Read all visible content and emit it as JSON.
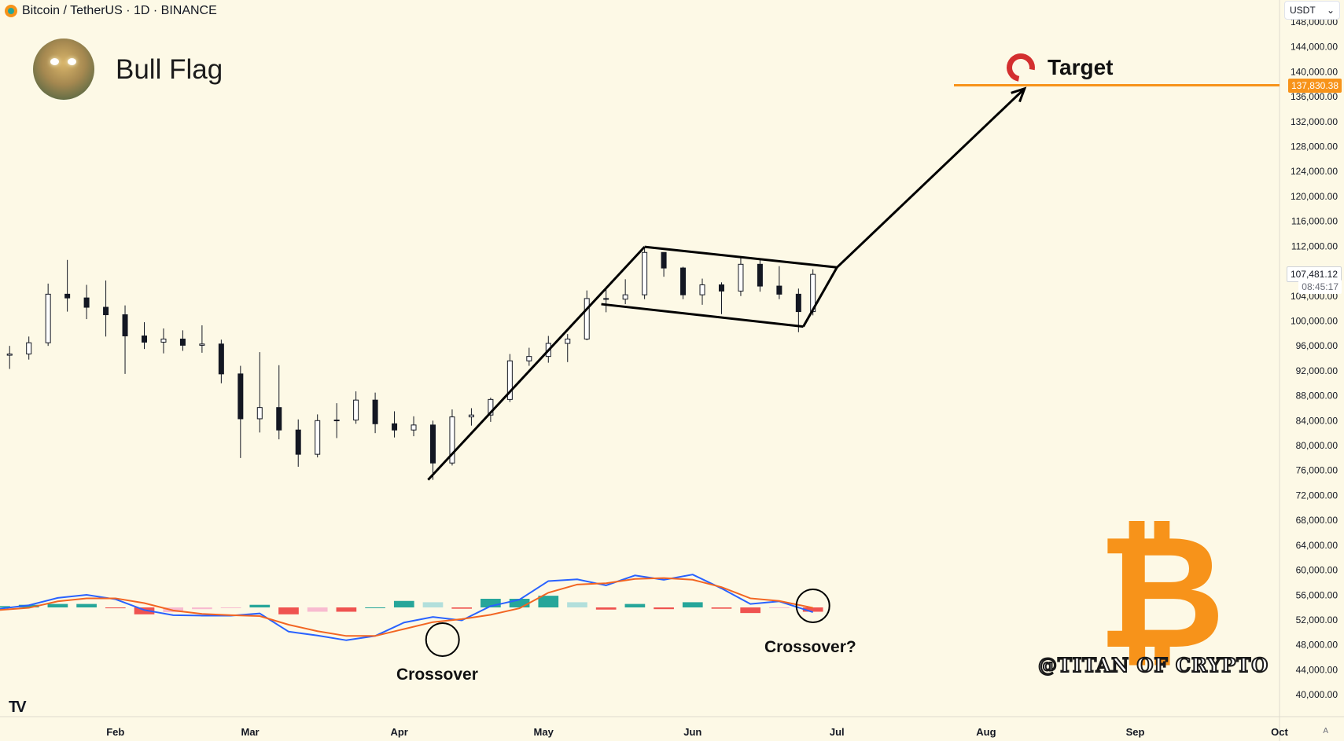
{
  "header": {
    "symbol": "Bitcoin / TetherUS · 1D · BINANCE",
    "currency": "USDT"
  },
  "title": "Bull Flag",
  "target": {
    "label": "Target",
    "price": "137,830.38"
  },
  "price_scale": {
    "current_price": "107,481.12",
    "countdown": "08:45:17"
  },
  "annotations": {
    "crossover": "Crossover",
    "crossover_q": "Crossover?"
  },
  "watermark": {
    "brand": "@TITAN OF CRYPTO",
    "logo": "₿"
  },
  "icons": [
    "bitcoin-coin-icon",
    "chevron-down-icon",
    "magnet-icon",
    "tradingview-logo-icon",
    "auto-scale-icon"
  ],
  "colors": {
    "background": "#fdf9e6",
    "target_line": "#f7931a",
    "macd_line": "#2962ff",
    "signal_line": "#f26522",
    "hist_pos_strong": "#26a69a",
    "hist_pos_weak": "#b2dfdb",
    "hist_neg_strong": "#ef5350",
    "hist_neg_weak": "#f8bbd0"
  },
  "chart_data": [
    {
      "type": "candlestick",
      "xlabel": "",
      "ylabel": "",
      "x_ticks": [
        "Feb",
        "Mar",
        "Apr",
        "May",
        "Jun",
        "Jul",
        "Aug",
        "Sep",
        "Oct"
      ],
      "y_ticks": [
        "40,000.00",
        "44,000.00",
        "48,000.00",
        "52,000.00",
        "56,000.00",
        "60,000.00",
        "64,000.00",
        "68,000.00",
        "72,000.00",
        "76,000.00",
        "80,000.00",
        "84,000.00",
        "88,000.00",
        "92,000.00",
        "96,000.00",
        "100,000.00",
        "104,000.00",
        "108,000.00",
        "112,000.00",
        "116,000.00",
        "120,000.00",
        "124,000.00",
        "128,000.00",
        "132,000.00",
        "136,000.00",
        "140,000.00",
        "144,000.00",
        "148,000.00"
      ],
      "ylim": [
        38000,
        149000
      ],
      "x_range": [
        "2025-01-08",
        "2025-10-01"
      ],
      "target_level": 137830.38,
      "last_close": 107481.12,
      "series": [
        {
          "points": [
            [
              "2025-01-10",
              94500,
              96000,
              92300,
              94700
            ],
            [
              "2025-01-14",
              94700,
              97500,
              93800,
              96500
            ],
            [
              "2025-01-18",
              96500,
              106000,
              96000,
              104300
            ],
            [
              "2025-01-22",
              104300,
              109800,
              101500,
              103700
            ],
            [
              "2025-01-26",
              103700,
              105800,
              100300,
              102200
            ],
            [
              "2025-01-30",
              102200,
              106500,
              97500,
              101000
            ],
            [
              "2025-02-03",
              101000,
              102500,
              91500,
              97600
            ],
            [
              "2025-02-07",
              97600,
              99800,
              95500,
              96600
            ],
            [
              "2025-02-11",
              96600,
              98800,
              94800,
              97100
            ],
            [
              "2025-02-15",
              97100,
              98500,
              95200,
              96100
            ],
            [
              "2025-02-19",
              96100,
              99300,
              94900,
              96300
            ],
            [
              "2025-02-23",
              96300,
              97000,
              90000,
              91500
            ],
            [
              "2025-02-27",
              91500,
              92800,
              78000,
              84300
            ],
            [
              "2025-03-03",
              84300,
              95000,
              82100,
              86100
            ],
            [
              "2025-03-07",
              86100,
              92900,
              81000,
              82500
            ],
            [
              "2025-03-11",
              82500,
              84200,
              76600,
              78600
            ],
            [
              "2025-03-15",
              78600,
              85000,
              78100,
              84000
            ],
            [
              "2025-03-19",
              84000,
              86800,
              81200,
              84100
            ],
            [
              "2025-03-23",
              84100,
              88700,
              83500,
              87300
            ],
            [
              "2025-03-27",
              87300,
              88500,
              82000,
              83500
            ],
            [
              "2025-03-31",
              83500,
              85500,
              81300,
              82500
            ],
            [
              "2025-04-04",
              82500,
              84700,
              81500,
              83300
            ],
            [
              "2025-04-08",
              83300,
              84000,
              74500,
              77200
            ],
            [
              "2025-04-12",
              77200,
              85800,
              76800,
              84600
            ],
            [
              "2025-04-16",
              84600,
              86000,
              83200,
              84900
            ],
            [
              "2025-04-20",
              84900,
              87700,
              83800,
              87400
            ],
            [
              "2025-04-24",
              87400,
              94700,
              87000,
              93600
            ],
            [
              "2025-04-28",
              93600,
              95700,
              92800,
              94300
            ],
            [
              "2025-05-02",
              94300,
              97600,
              93300,
              96400
            ],
            [
              "2025-05-06",
              96400,
              97900,
              93400,
              97100
            ],
            [
              "2025-05-10",
              97100,
              104900,
              96900,
              103600
            ],
            [
              "2025-05-14",
              103600,
              105500,
              101400,
              103500
            ],
            [
              "2025-05-18",
              103500,
              106700,
              102700,
              104200
            ],
            [
              "2025-05-22",
              104200,
              111900,
              103500,
              111000
            ],
            [
              "2025-05-26",
              111000,
              110500,
              107100,
              108500
            ],
            [
              "2025-05-30",
              108500,
              108700,
              103500,
              104200
            ],
            [
              "2025-06-03",
              104200,
              106800,
              102600,
              105800
            ],
            [
              "2025-06-07",
              105800,
              106200,
              101100,
              104800
            ],
            [
              "2025-06-11",
              104800,
              110400,
              104000,
              109100
            ],
            [
              "2025-06-15",
              109100,
              110000,
              104700,
              105600
            ],
            [
              "2025-06-19",
              105600,
              108800,
              103500,
              104300
            ],
            [
              "2025-06-23",
              104300,
              105200,
              98200,
              101500
            ],
            [
              "2025-06-26",
              101500,
              108300,
              100900,
              107481.12
            ]
          ]
        }
      ]
    },
    {
      "type": "line",
      "title": "",
      "x_range": [
        "2025-01-08",
        "2025-10-01"
      ],
      "series": [
        {
          "role": "macd",
          "x": [
            "2025-01-08",
            "2025-01-14",
            "2025-01-20",
            "2025-01-26",
            "2025-02-01",
            "2025-02-07",
            "2025-02-13",
            "2025-02-19",
            "2025-02-25",
            "2025-03-03",
            "2025-03-09",
            "2025-03-15",
            "2025-03-21",
            "2025-03-27",
            "2025-04-02",
            "2025-04-08",
            "2025-04-14",
            "2025-04-20",
            "2025-04-26",
            "2025-05-02",
            "2025-05-08",
            "2025-05-14",
            "2025-05-20",
            "2025-05-26",
            "2025-06-01",
            "2025-06-07",
            "2025-06-13",
            "2025-06-19",
            "2025-06-26"
          ],
          "values": [
            -300,
            500,
            2200,
            2900,
            1900,
            -600,
            -1800,
            -1900,
            -1900,
            -1400,
            -5600,
            -6500,
            -7600,
            -6600,
            -3500,
            -2200,
            -3000,
            300,
            1800,
            6100,
            6500,
            5100,
            7400,
            6400,
            7600,
            4400,
            800,
            1400,
            -1100
          ]
        },
        {
          "role": "signal",
          "x": [
            "2025-01-08",
            "2025-01-14",
            "2025-01-20",
            "2025-01-26",
            "2025-02-01",
            "2025-02-07",
            "2025-02-13",
            "2025-02-19",
            "2025-02-25",
            "2025-03-03",
            "2025-03-09",
            "2025-03-15",
            "2025-03-21",
            "2025-03-27",
            "2025-04-02",
            "2025-04-08",
            "2025-04-14",
            "2025-04-20",
            "2025-04-26",
            "2025-05-02",
            "2025-05-08",
            "2025-05-14",
            "2025-05-20",
            "2025-05-26",
            "2025-06-01",
            "2025-06-07",
            "2025-06-13",
            "2025-06-19",
            "2025-06-26"
          ],
          "values": [
            -600,
            -100,
            1400,
            2100,
            2100,
            1000,
            -700,
            -1500,
            -1800,
            -2000,
            -4000,
            -5500,
            -6600,
            -6600,
            -5000,
            -3400,
            -2700,
            -1700,
            -200,
            3400,
            5300,
            5600,
            6600,
            6800,
            6400,
            4700,
            2100,
            1500,
            -100
          ]
        }
      ],
      "histogram": {
        "x": [
          "2025-01-08",
          "2025-01-14",
          "2025-01-20",
          "2025-01-26",
          "2025-02-01",
          "2025-02-07",
          "2025-02-13",
          "2025-02-19",
          "2025-02-25",
          "2025-03-03",
          "2025-03-09",
          "2025-03-15",
          "2025-03-21",
          "2025-03-27",
          "2025-04-02",
          "2025-04-08",
          "2025-04-14",
          "2025-04-20",
          "2025-04-26",
          "2025-05-02",
          "2025-05-08",
          "2025-05-14",
          "2025-05-20",
          "2025-05-26",
          "2025-06-01",
          "2025-06-07",
          "2025-06-13",
          "2025-06-19",
          "2025-06-26"
        ],
        "values": [
          300,
          600,
          800,
          800,
          -200,
          -1600,
          -1100,
          -400,
          -100,
          600,
          -1600,
          -1000,
          -1000,
          0,
          1500,
          1200,
          -300,
          2000,
          2000,
          2700,
          1200,
          -500,
          800,
          -400,
          1200,
          -300,
          -1300,
          -100,
          -1000
        ]
      },
      "crossovers": [
        {
          "label": "Crossover",
          "x": "2025-04-10"
        },
        {
          "label": "Crossover?",
          "x": "2025-06-26"
        }
      ]
    }
  ]
}
